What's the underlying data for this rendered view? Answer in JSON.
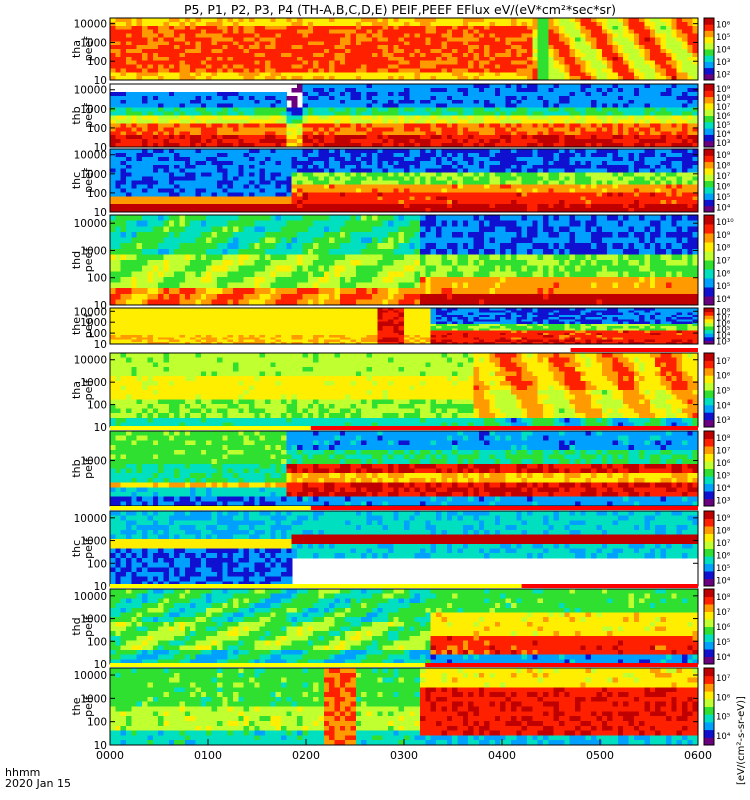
{
  "title": "P5, P1, P2, P3, P4 (TH-A,B,C,D,E) PEIF,PEEF EFlux eV/(eV*cm²*sec*sr)",
  "time_axis": {
    "label_line1": "hhmm",
    "label_line2": "2020 Jan 15",
    "ticks": [
      "0000",
      "0100",
      "0200",
      "0300",
      "0400",
      "0500",
      "0600"
    ]
  },
  "colorbar_unit": "[eV/(cm²-s-sr-eV)]",
  "colors": {
    "spectrum": [
      "#6a0080",
      "#1010d0",
      "#00a0ff",
      "#00e0c0",
      "#30e030",
      "#c0ff30",
      "#ffee00",
      "#ff9a00",
      "#ff2000",
      "#c00000"
    ],
    "bar_red": "#ff0000",
    "bar_yellow": "#ffff00"
  },
  "chart_data": {
    "type": "heatmap",
    "x_units": "hhmm",
    "xlim": [
      "0000",
      "0600"
    ],
    "y_scale": "log",
    "panels": [
      {
        "id": "tha_peef",
        "label_line1": "tha",
        "label_line2": "peef",
        "ylim": [
          10,
          20000
        ],
        "yticks": [
          "10000",
          "1000",
          "100",
          "10"
        ],
        "cbar_ticks": [
          "10⁶",
          "10⁵",
          "10⁴",
          "10³",
          "10²"
        ],
        "profile": "tha_peef"
      },
      {
        "id": "thb_peef",
        "label_line1": "thb",
        "label_line2": "peef",
        "ylim": [
          10,
          20000
        ],
        "yticks": [
          "10000",
          "1000",
          "100",
          "10"
        ],
        "cbar_ticks": [
          "10⁹",
          "10⁸",
          "10⁷",
          "10⁶",
          "10⁵",
          "10⁴",
          "10³"
        ],
        "profile": "thb_peef"
      },
      {
        "id": "thc_peef",
        "label_line1": "thc",
        "label_line2": "peef",
        "ylim": [
          10,
          20000
        ],
        "yticks": [
          "10000",
          "1000",
          "100",
          "10"
        ],
        "cbar_ticks": [
          "10⁹",
          "10⁸",
          "10⁷",
          "10⁶",
          "10⁵",
          "10⁴"
        ],
        "profile": "thc_peef"
      },
      {
        "id": "thd_peef",
        "label_line1": "thd",
        "label_line2": "peef",
        "ylim": [
          10,
          20000
        ],
        "yticks": [
          "10000",
          "1000",
          "100",
          "10"
        ],
        "cbar_ticks": [
          "10¹⁰",
          "10⁹",
          "10⁸",
          "10⁷",
          "10⁶",
          "10⁵",
          "10⁴"
        ],
        "profile": "thd_peef"
      },
      {
        "id": "the_peef",
        "label_line1": "the",
        "label_line2": "peef",
        "ylim": [
          10,
          20000
        ],
        "yticks": [
          "10000",
          "1000",
          "100",
          "10"
        ],
        "cbar_ticks": [
          "10⁸",
          "10⁷",
          "10⁶",
          "10⁵",
          "10⁴",
          "10³"
        ],
        "profile": "the_peef"
      },
      {
        "id": "tha_peif",
        "label_line1": "tha",
        "label_line2": "peif",
        "ylim": [
          10,
          20000
        ],
        "yticks": [
          "10000",
          "1000",
          "100",
          "10"
        ],
        "cbar_ticks": [
          "10⁷",
          "10⁶",
          "10⁵",
          "10⁴",
          "10³"
        ],
        "profile": "tha_peif"
      },
      {
        "id": "thb_peif",
        "label_line1": "thb",
        "label_line2": "peif",
        "ylim": [
          10,
          20000
        ],
        "yticks": [
          "1000"
        ],
        "cbar_ticks": [
          "10⁸",
          "10⁷",
          "10⁶",
          "10⁵",
          "10⁴",
          "10³"
        ],
        "profile": "thb_peif"
      },
      {
        "id": "thc_peif",
        "label_line1": "thc",
        "label_line2": "peif",
        "ylim": [
          10,
          20000
        ],
        "yticks": [
          "10000",
          "1000",
          "100",
          "10"
        ],
        "cbar_ticks": [
          "10⁹",
          "10⁸",
          "10⁷",
          "10⁶",
          "10⁵",
          "10⁴"
        ],
        "profile": "thc_peif"
      },
      {
        "id": "thd_peif",
        "label_line1": "thd",
        "label_line2": "peif",
        "ylim": [
          10,
          20000
        ],
        "yticks": [
          "10000",
          "1000",
          "100",
          "10"
        ],
        "cbar_ticks": [
          "10⁸",
          "10⁷",
          "10⁶",
          "10⁵",
          "10⁴"
        ],
        "profile": "thd_peif"
      },
      {
        "id": "the_peif",
        "label_line1": "the",
        "label_line2": "peif",
        "ylim": [
          10,
          20000
        ],
        "yticks": [
          "10000",
          "1000",
          "100",
          "10"
        ],
        "cbar_ticks": [
          "10⁷",
          "10⁶",
          "10⁵",
          "10⁴"
        ],
        "profile": "the_peif"
      }
    ],
    "mode_bars": [
      {
        "above_panel": "tha_peif",
        "segments": [
          {
            "start": "0442",
            "end": "0600",
            "color": "red"
          }
        ]
      },
      {
        "above_panel": "thb_peif",
        "segments": [
          {
            "start": "0000",
            "end": "0203",
            "color": "yellow"
          },
          {
            "start": "0203",
            "end": "0600",
            "color": "red"
          }
        ]
      },
      {
        "above_panel": "thc_peif",
        "segments": [
          {
            "start": "0000",
            "end": "0203",
            "color": "yellow"
          },
          {
            "start": "0203",
            "end": "0600",
            "color": "red"
          }
        ]
      },
      {
        "above_panel": "thd_peif",
        "segments": [
          {
            "start": "0000",
            "end": "0412",
            "color": "yellow"
          },
          {
            "start": "0412",
            "end": "0600",
            "color": "red"
          }
        ]
      },
      {
        "above_panel": "the_peif",
        "segments": [
          {
            "start": "0000",
            "end": "0313",
            "color": "yellow"
          },
          {
            "start": "0313",
            "end": "0600",
            "color": "red"
          }
        ]
      }
    ]
  }
}
